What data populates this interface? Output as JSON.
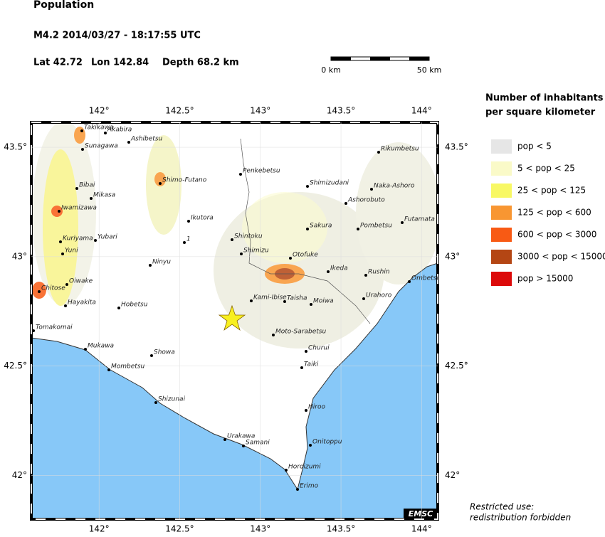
{
  "header": {
    "title": "Population",
    "event": "M4.2  2014/03/27 - 18:17:55 UTC",
    "lat": "Lat 42.72",
    "lon": "Lon 142.84",
    "depth": "Depth  68.2 km"
  },
  "scale": {
    "start": "0 km",
    "end": "50 km"
  },
  "map": {
    "xlim": [
      141.58,
      144.1
    ],
    "ylim": [
      41.8,
      43.614
    ],
    "xticks": [
      {
        "value": 142,
        "label": "142°"
      },
      {
        "value": 142.5,
        "label": "142.5°"
      },
      {
        "value": 143,
        "label": "143°"
      },
      {
        "value": 143.5,
        "label": "143.5°"
      },
      {
        "value": 144,
        "label": "144°"
      }
    ],
    "yticks": [
      {
        "value": 42,
        "label": "42°"
      },
      {
        "value": 42.5,
        "label": "42.5°"
      },
      {
        "value": 43,
        "label": "43°"
      },
      {
        "value": 43.5,
        "label": "43.5°"
      }
    ],
    "towns": [
      "Takikawa",
      "Akabira",
      "Ashibetsu",
      "Sunagawa",
      "Bibai",
      "Mikasa",
      "Iwamizawa",
      "Kuriyama",
      "Yubari",
      "Yuni",
      "Oiwake",
      "Chitose",
      "Hayakita",
      "Hobetsu",
      "Tomakomai",
      "Mukawa",
      "Mombetsu",
      "Showa",
      "Shizunai",
      "Ninyu",
      "Ikutora",
      "1",
      "Shimo-Futano",
      "Penkebetsu",
      "Shintoku",
      "Shimizu",
      "Shimizudani",
      "Naka-Ashoro",
      "Ashorobuto",
      "Rikumbetsu",
      "Futamata",
      "Pombetsu",
      "Sakura",
      "Otofuke",
      "Ikeda",
      "Rushin",
      "Ombetsu",
      "Kami-Ibise",
      "Taisha",
      "Moiwa",
      "Urahoro",
      "Moto-Sarabetsu",
      "Churui",
      "Taiki",
      "Hiroo",
      "Onitoppu",
      "Urakawa",
      "Samani",
      "Horoizumi",
      "Erimo"
    ],
    "credit": "EMSC"
  },
  "legend": {
    "title": [
      "Number of inhabitants",
      "per square kilometer"
    ],
    "entries": [
      {
        "label": "pop < 5",
        "color": "#e6e6e6"
      },
      {
        "label": "5 < pop < 25",
        "color": "#fafac8"
      },
      {
        "label": "25 < pop < 125",
        "color": "#f8f864"
      },
      {
        "label": "125 < pop < 600",
        "color": "#f89632"
      },
      {
        "label": "600 < pop < 3000",
        "color": "#f85a14"
      },
      {
        "label": "3000 < pop < 15000",
        "color": "#b44614"
      },
      {
        "label": "pop > 15000",
        "color": "#dc0a0a"
      }
    ]
  },
  "note": [
    "Restricted use:",
    "redistribution forbidden"
  ]
}
